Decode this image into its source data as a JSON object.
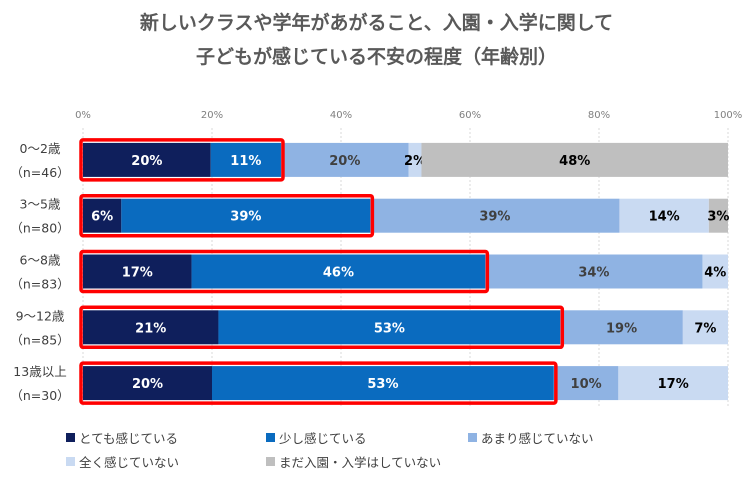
{
  "chart_data": {
    "type": "bar",
    "orientation": "horizontal-stacked-100",
    "title_lines": [
      "新しいクラスや学年があがること、入園・入学に関して",
      "子どもが感じている不安の程度（年齢別）"
    ],
    "xlim": [
      0,
      100
    ],
    "xticks": [
      "0%",
      "20%",
      "40%",
      "60%",
      "80%",
      "100%"
    ],
    "categories": [
      {
        "label": "0〜2歳",
        "n": "（n=46）"
      },
      {
        "label": "3〜5歳",
        "n": "（n=80）"
      },
      {
        "label": "6〜8歳",
        "n": "（n=83）"
      },
      {
        "label": "9〜12歳",
        "n": "（n=85）"
      },
      {
        "label": "13歳以上",
        "n": "（n=30）"
      }
    ],
    "series": [
      {
        "name": "とても感じている",
        "color": "#0f1f5c",
        "label_color": "#ffffff",
        "values": [
          20,
          6,
          17,
          21,
          20
        ]
      },
      {
        "name": "少し感じている",
        "color": "#0a6bbf",
        "label_color": "#ffffff",
        "values": [
          11,
          39,
          46,
          53,
          53
        ]
      },
      {
        "name": "あまり感じていない",
        "color": "#8fb3e3",
        "label_color": "#404040",
        "values": [
          20,
          39,
          34,
          19,
          10
        ]
      },
      {
        "name": "全く感じていない",
        "color": "#c9daf2",
        "label_color": "#000000",
        "values": [
          2,
          14,
          4,
          7,
          17
        ]
      },
      {
        "name": "まだ入園・入学はしていない",
        "color": "#bfbfbf",
        "label_color": "#000000",
        "values": [
          48,
          3,
          0,
          0,
          0
        ]
      }
    ],
    "highlight_color": "#ff0000",
    "grid": true,
    "legend": "bottom"
  }
}
